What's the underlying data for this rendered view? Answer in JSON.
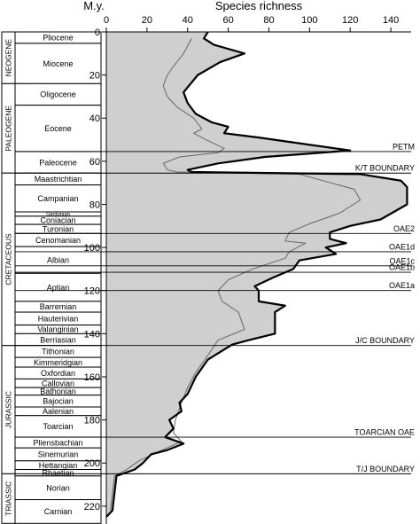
{
  "chart_data": {
    "type": "area",
    "title": "",
    "xlabel": "Species richness",
    "ylabel": "M.y.",
    "xlim": [
      0,
      150
    ],
    "ylim": [
      0,
      225
    ],
    "y_reversed": true,
    "grid": false,
    "x_ticks": [
      0,
      20,
      40,
      60,
      80,
      100,
      120,
      140
    ],
    "y_ticks": [
      0,
      20,
      40,
      60,
      80,
      100,
      120,
      140,
      160,
      180,
      200,
      220
    ],
    "series": [
      {
        "style": "thick-black-line-gray-fill",
        "points": [
          [
            50,
            0
          ],
          [
            48,
            3
          ],
          [
            53,
            6
          ],
          [
            68,
            10
          ],
          [
            56,
            14
          ],
          [
            45,
            20
          ],
          [
            38,
            28
          ],
          [
            40,
            33
          ],
          [
            44,
            38
          ],
          [
            52,
            42
          ],
          [
            60,
            44
          ],
          [
            58,
            47
          ],
          [
            75,
            49
          ],
          [
            90,
            51
          ],
          [
            120,
            55
          ],
          [
            78,
            58
          ],
          [
            55,
            61
          ],
          [
            40,
            64
          ],
          [
            42,
            65
          ],
          [
            125,
            66
          ],
          [
            145,
            69
          ],
          [
            148,
            72
          ],
          [
            148,
            80
          ],
          [
            135,
            87
          ],
          [
            120,
            90
          ],
          [
            110,
            93
          ],
          [
            110,
            96
          ],
          [
            118,
            98
          ],
          [
            108,
            100
          ],
          [
            113,
            103
          ],
          [
            95,
            106
          ],
          [
            92,
            110
          ],
          [
            82,
            114
          ],
          [
            73,
            118
          ],
          [
            75,
            120
          ],
          [
            75,
            125
          ],
          [
            88,
            127
          ],
          [
            83,
            130
          ],
          [
            83,
            140
          ],
          [
            70,
            143
          ],
          [
            62,
            145
          ],
          [
            50,
            152
          ],
          [
            47,
            156
          ],
          [
            44,
            160
          ],
          [
            42,
            164
          ],
          [
            40,
            168
          ],
          [
            36,
            172
          ],
          [
            37,
            176
          ],
          [
            34,
            178
          ],
          [
            31,
            180
          ],
          [
            32,
            182
          ],
          [
            33,
            184
          ],
          [
            31,
            186
          ],
          [
            29,
            188
          ],
          [
            38,
            191
          ],
          [
            30,
            194
          ],
          [
            22,
            196
          ],
          [
            18,
            200
          ],
          [
            14,
            203
          ],
          [
            5,
            206
          ],
          [
            4,
            214
          ],
          [
            3,
            222
          ],
          [
            0,
            225
          ]
        ]
      },
      {
        "style": "thin-gray-line",
        "points": [
          [
            42,
            3
          ],
          [
            38,
            10
          ],
          [
            33,
            16
          ],
          [
            30,
            20
          ],
          [
            28,
            25
          ],
          [
            30,
            30
          ],
          [
            35,
            35
          ],
          [
            43,
            40
          ],
          [
            47,
            45
          ],
          [
            43,
            47
          ],
          [
            49,
            50
          ],
          [
            58,
            54
          ],
          [
            55,
            56
          ],
          [
            36,
            58
          ],
          [
            28,
            61
          ],
          [
            30,
            64
          ],
          [
            35,
            65
          ],
          [
            95,
            66
          ],
          [
            122,
            73
          ],
          [
            125,
            78
          ],
          [
            115,
            84
          ],
          [
            100,
            89
          ],
          [
            90,
            93
          ],
          [
            88,
            97
          ],
          [
            98,
            98
          ],
          [
            90,
            102
          ],
          [
            88,
            105
          ],
          [
            72,
            110
          ],
          [
            60,
            115
          ],
          [
            55,
            120
          ],
          [
            57,
            125
          ],
          [
            65,
            130
          ],
          [
            68,
            138
          ],
          [
            55,
            143
          ],
          [
            50,
            150
          ],
          [
            44,
            158
          ],
          [
            40,
            165
          ],
          [
            37,
            172
          ],
          [
            34,
            180
          ],
          [
            33,
            186
          ],
          [
            37,
            190
          ],
          [
            25,
            195
          ],
          [
            16,
            199
          ],
          [
            10,
            203
          ],
          [
            4,
            206
          ],
          [
            3,
            214
          ],
          [
            2,
            222
          ]
        ]
      }
    ],
    "boundaries": [
      {
        "age": 55.5,
        "label": "PETM"
      },
      {
        "age": 65.5,
        "label": "K/T BOUNDARY"
      },
      {
        "age": 93.5,
        "label": "OAE2"
      },
      {
        "age": 102,
        "label": "OAE1d"
      },
      {
        "age": 108.5,
        "label": "OAE1c"
      },
      {
        "age": 111.5,
        "label": "OAE1b"
      },
      {
        "age": 120,
        "label": "OAE1a"
      },
      {
        "age": 145.5,
        "label": "J/C BOUNDARY"
      },
      {
        "age": 188,
        "label": "TOARCIAN OAE"
      },
      {
        "age": 205,
        "label": "T/J BOUNDARY"
      }
    ],
    "eras": [
      {
        "label": "NEOGENE",
        "top": 0,
        "bottom": 24
      },
      {
        "label": "PALEOGENE",
        "top": 24,
        "bottom": 65.5
      },
      {
        "label": "CRETACEOUS",
        "top": 65.5,
        "bottom": 145.5
      },
      {
        "label": "JURASSIC",
        "top": 145.5,
        "bottom": 205
      },
      {
        "label": "TRIASSIC",
        "top": 205,
        "bottom": 228
      }
    ],
    "stages": [
      {
        "label": "Pliocene",
        "top": 0,
        "bottom": 5.3
      },
      {
        "label": "Miocene",
        "top": 5.3,
        "bottom": 24
      },
      {
        "label": "Oligocene",
        "top": 24,
        "bottom": 34
      },
      {
        "label": "Eocene",
        "top": 34,
        "bottom": 55.5
      },
      {
        "label": "Paleocene",
        "top": 55.5,
        "bottom": 65.5
      },
      {
        "label": "Maastrichtian",
        "top": 65.5,
        "bottom": 71
      },
      {
        "label": "Campanian",
        "top": 71,
        "bottom": 83.5
      },
      {
        "label": "Santonian",
        "top": 83.5,
        "bottom": 85.5
      },
      {
        "label": "Coniacian",
        "top": 85.5,
        "bottom": 89.3
      },
      {
        "label": "Turonian",
        "top": 89.3,
        "bottom": 93.5
      },
      {
        "label": "Cenomanian",
        "top": 93.5,
        "bottom": 99.6
      },
      {
        "label": "Albian",
        "top": 99.6,
        "bottom": 112
      },
      {
        "label": "Aptian",
        "top": 112,
        "bottom": 125
      },
      {
        "label": "Barremian",
        "top": 125,
        "bottom": 130
      },
      {
        "label": "Hauterivian",
        "top": 130,
        "bottom": 136
      },
      {
        "label": "Valanginian",
        "top": 136,
        "bottom": 140
      },
      {
        "label": "Berriasian",
        "top": 140,
        "bottom": 145.5
      },
      {
        "label": "Tithonian",
        "top": 145.5,
        "bottom": 151
      },
      {
        "label": "Kimmeridgian",
        "top": 151,
        "bottom": 155.5
      },
      {
        "label": "Oxfordian",
        "top": 155.5,
        "bottom": 161
      },
      {
        "label": "Callovian",
        "top": 161,
        "bottom": 165
      },
      {
        "label": "Bathonian",
        "top": 165,
        "bottom": 168.5
      },
      {
        "label": "Bajocian",
        "top": 168.5,
        "bottom": 174
      },
      {
        "label": "Aalenian",
        "top": 174,
        "bottom": 178
      },
      {
        "label": "Toarcian",
        "top": 178,
        "bottom": 188
      },
      {
        "label": "Pliensbachian",
        "top": 188,
        "bottom": 193
      },
      {
        "label": "Sinemurian",
        "top": 193,
        "bottom": 199
      },
      {
        "label": "Hettangian",
        "top": 199,
        "bottom": 203
      },
      {
        "label": "Rhaetian",
        "top": 203,
        "bottom": 206
      },
      {
        "label": "Norian",
        "top": 206,
        "bottom": 217
      },
      {
        "label": "Carnian",
        "top": 217,
        "bottom": 228
      }
    ]
  }
}
